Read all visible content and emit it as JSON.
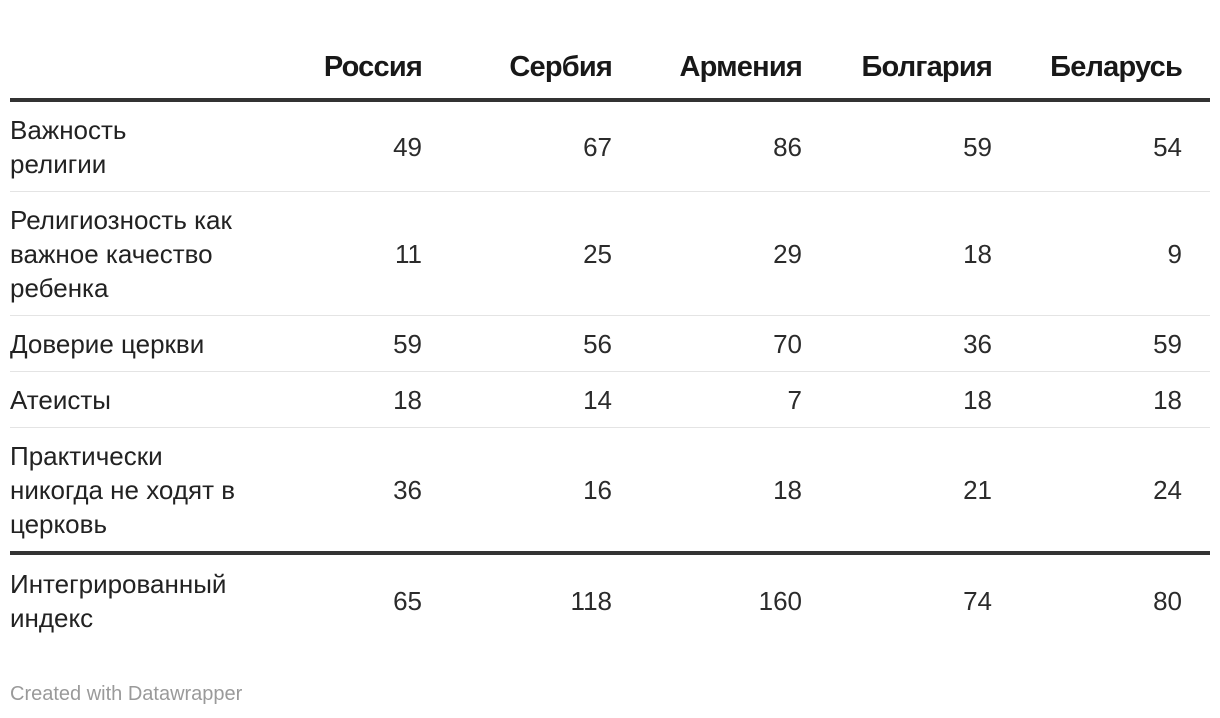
{
  "chart_data": {
    "type": "table",
    "columns": [
      "Россия",
      "Сербия",
      "Армения",
      "Болгария",
      "Беларусь"
    ],
    "rows": [
      {
        "label": "Важность религии",
        "values": [
          49,
          67,
          86,
          59,
          54
        ]
      },
      {
        "label": "Религиозность как важное качество ребенка",
        "values": [
          11,
          25,
          29,
          18,
          9
        ]
      },
      {
        "label": "Доверие церкви",
        "values": [
          59,
          56,
          70,
          36,
          59
        ]
      },
      {
        "label": "Атеисты",
        "values": [
          18,
          14,
          7,
          18,
          18
        ]
      },
      {
        "label": "Практически никогда не ходят в церковь",
        "values": [
          36,
          16,
          18,
          21,
          24
        ]
      }
    ],
    "total_row": {
      "label": "Интегрированный индекс",
      "values": [
        65,
        118,
        160,
        74,
        80
      ]
    }
  },
  "footer": {
    "credit": "Created with Datawrapper"
  }
}
